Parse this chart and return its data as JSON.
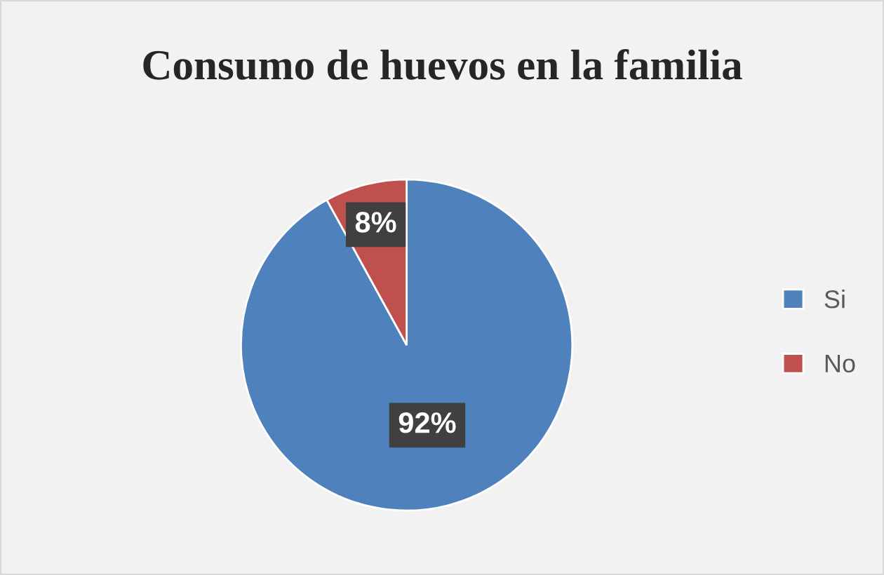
{
  "chart_data": {
    "type": "pie",
    "title": "Consumo de huevos en la familia",
    "categories": [
      "Si",
      "No"
    ],
    "values": [
      92,
      8
    ],
    "colors": [
      "#4f81bd",
      "#c0504d"
    ],
    "value_labels": [
      "92%",
      "8%"
    ],
    "legend": "right"
  }
}
